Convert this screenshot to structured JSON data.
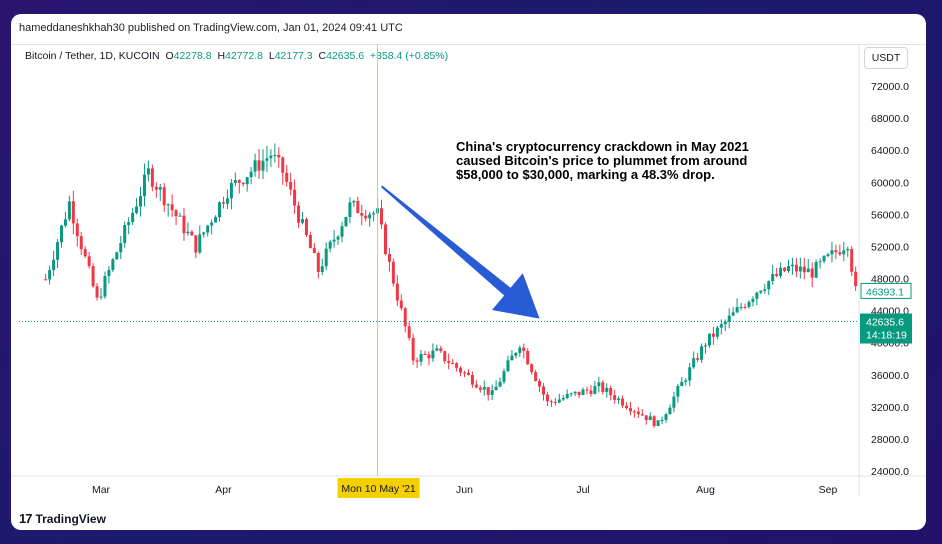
{
  "publisher_line": "hameddaneshkhah30 published on TradingView.com, Jan 01, 2024 09:41 UTC",
  "symbol": {
    "name": "Bitcoin / Tether, 1D, KUCOIN",
    "o_label": "O",
    "o": "42278.8",
    "h_label": "H",
    "h": "42772.8",
    "l_label": "L",
    "l": "42177.3",
    "c_label": "C",
    "c": "42635.6",
    "change": "+358.4 (+0.85%)"
  },
  "currency_button": "USDT",
  "annotation": "China's cryptocurrency crackdown in May 2021 caused Bitcoin's price to plummet from around $58,000 to $30,000, marking a 48.3% drop.",
  "branding": "TradingView",
  "colors": {
    "up": "#089981",
    "down": "#f23645",
    "arrow": "#2a5bd7",
    "crosshair": "#f5d000",
    "price_line": "#089981"
  },
  "chart_data": {
    "type": "candlestick",
    "title": "",
    "xlabel": "",
    "ylabel": "",
    "ylim": [
      22000,
      76000
    ],
    "y_ticks": [
      "72000.0",
      "68000.0",
      "64000.0",
      "60000.0",
      "56000.0",
      "52000.0",
      "48000.0",
      "44000.0",
      "40000.0",
      "36000.0",
      "32000.0",
      "28000.0",
      "24000.0"
    ],
    "x_ticks": [
      "Mar",
      "Apr",
      "Jun",
      "Jul",
      "Aug",
      "Sep"
    ],
    "crosshair_label": "Mon 10 May '21",
    "price_labels": [
      {
        "value": 46393.1,
        "text": "46393.1",
        "style": "outline"
      },
      {
        "value": 42635.6,
        "text": "42635.6",
        "style": "filled",
        "countdown": "14:18:19"
      }
    ],
    "close_path": [
      [
        "2021-02-15",
        47900
      ],
      [
        "2021-02-21",
        57500
      ],
      [
        "2021-02-28",
        45200
      ],
      [
        "2021-03-13",
        61200
      ],
      [
        "2021-03-25",
        52000
      ],
      [
        "2021-04-02",
        59000
      ],
      [
        "2021-04-13",
        63500
      ],
      [
        "2021-04-16",
        61300
      ],
      [
        "2021-04-25",
        49000
      ],
      [
        "2021-05-03",
        57000
      ],
      [
        "2021-05-10",
        56000
      ],
      [
        "2021-05-13",
        49700
      ],
      [
        "2021-05-19",
        38000
      ],
      [
        "2021-05-25",
        38800
      ],
      [
        "2021-06-08",
        33500
      ],
      [
        "2021-06-15",
        40000
      ],
      [
        "2021-06-22",
        32500
      ],
      [
        "2021-07-05",
        34500
      ],
      [
        "2021-07-20",
        29800
      ],
      [
        "2021-08-01",
        40000
      ],
      [
        "2021-08-15",
        47000
      ],
      [
        "2021-08-22",
        49300
      ],
      [
        "2021-08-28",
        48800
      ],
      [
        "2021-09-06",
        52600
      ],
      [
        "2021-09-08",
        46400
      ]
    ],
    "annotation_arrow": {
      "from": [
        "2021-05-11",
        59500
      ],
      "to": [
        "2021-06-20",
        43000
      ]
    }
  }
}
